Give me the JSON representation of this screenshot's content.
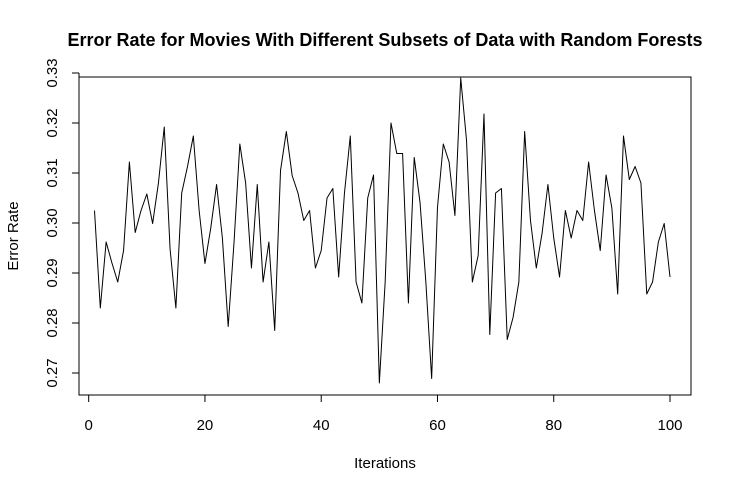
{
  "chart_data": {
    "type": "line",
    "title": "Error Rate for Movies With Different Subsets of Data with Random Forests",
    "xlabel": "Iterations",
    "ylabel": "Error Rate",
    "xlim": [
      1,
      100
    ],
    "ylim": [
      0.268,
      0.329
    ],
    "x_ticks": [
      0,
      20,
      40,
      60,
      80,
      100
    ],
    "y_ticks": [
      0.27,
      0.28,
      0.29,
      0.3,
      0.31,
      0.32,
      0.33
    ],
    "x_tick_labels": [
      "0",
      "20",
      "40",
      "60",
      "80",
      "100"
    ],
    "y_tick_labels": [
      "0.27",
      "0.28",
      "0.29",
      "0.30",
      "0.31",
      "0.32",
      "0.33"
    ],
    "grid": false,
    "line_color": "#000000",
    "series": [
      {
        "x": [
          1,
          2,
          3,
          4,
          5,
          6,
          7,
          8,
          9,
          10,
          11,
          12,
          13,
          14,
          15,
          16,
          17,
          18,
          19,
          20,
          21,
          22,
          23,
          24,
          25,
          26,
          27,
          28,
          29,
          30,
          31,
          32,
          33,
          34,
          35,
          36,
          37,
          38,
          39,
          40,
          41,
          42,
          43,
          44,
          45,
          46,
          47,
          48,
          49,
          50,
          51,
          52,
          53,
          54,
          55,
          56,
          57,
          58,
          59,
          60,
          61,
          62,
          63,
          64,
          65,
          66,
          67,
          68,
          69,
          70,
          71,
          72,
          73,
          74,
          75,
          76,
          77,
          78,
          79,
          80,
          81,
          82,
          83,
          84,
          85,
          86,
          87,
          88,
          89,
          90,
          91,
          92,
          93,
          94,
          95,
          96,
          97,
          98,
          99,
          100
        ],
        "values": [
          0.3025,
          0.283,
          0.2962,
          0.292,
          0.2882,
          0.2945,
          0.3122,
          0.2981,
          0.3025,
          0.3058,
          0.2999,
          0.308,
          0.3192,
          0.2948,
          0.283,
          0.306,
          0.3113,
          0.3174,
          0.3025,
          0.2919,
          0.299,
          0.3077,
          0.297,
          0.2793,
          0.2961,
          0.3158,
          0.308,
          0.291,
          0.3077,
          0.2882,
          0.2962,
          0.2785,
          0.3105,
          0.3183,
          0.3095,
          0.306,
          0.3005,
          0.3025,
          0.291,
          0.2945,
          0.305,
          0.3069,
          0.2892,
          0.306,
          0.3174,
          0.2882,
          0.284,
          0.305,
          0.3096,
          0.268,
          0.2882,
          0.32,
          0.3139,
          0.3139,
          0.284,
          0.3131,
          0.3041,
          0.2882,
          0.2689,
          0.3031,
          0.3158,
          0.3122,
          0.3015,
          0.329,
          0.3165,
          0.2882,
          0.2935,
          0.3218,
          0.2777,
          0.306,
          0.3069,
          0.2767,
          0.2811,
          0.2882,
          0.3183,
          0.3005,
          0.291,
          0.298,
          0.3077,
          0.297,
          0.2892,
          0.3025,
          0.297,
          0.3025,
          0.3005,
          0.3122,
          0.3025,
          0.2945,
          0.3096,
          0.303,
          0.2858,
          0.3174,
          0.3087,
          0.3113,
          0.308,
          0.2858,
          0.2882,
          0.2962,
          0.2999,
          0.2892
        ]
      }
    ]
  }
}
